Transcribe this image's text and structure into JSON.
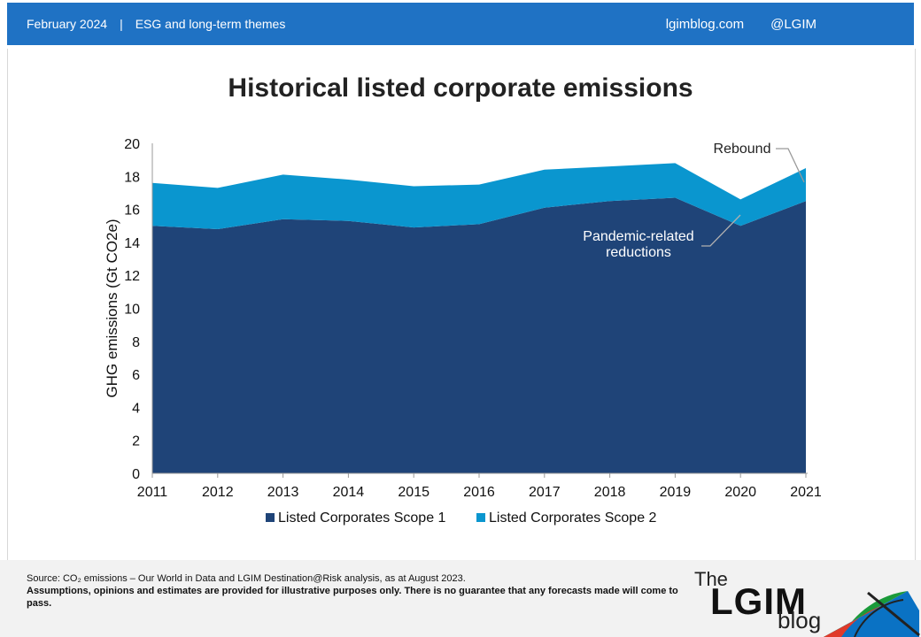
{
  "header": {
    "date": "February 2024",
    "separator": "|",
    "topic": "ESG and long-term themes",
    "site": "lgimblog.com",
    "handle": "@LGIM"
  },
  "chart_data": {
    "type": "area",
    "stacked": true,
    "title": "Historical listed corporate emissions",
    "ylabel": "GHG emissions (Gt CO2e)",
    "xlabel": "",
    "ylim": [
      0,
      20
    ],
    "yticks": [
      0,
      2,
      4,
      6,
      8,
      10,
      12,
      14,
      16,
      18,
      20
    ],
    "x": [
      "2011",
      "2012",
      "2013",
      "2014",
      "2015",
      "2016",
      "2017",
      "2018",
      "2019",
      "2020",
      "2021"
    ],
    "series": [
      {
        "name": "Listed Corporates Scope 1",
        "color": "#1f4478",
        "values": [
          15.0,
          14.8,
          15.4,
          15.3,
          14.9,
          15.1,
          16.1,
          16.5,
          16.7,
          15.0,
          16.5
        ]
      },
      {
        "name": "Listed Corporates Scope 2",
        "color": "#0a96cf",
        "values": [
          2.6,
          2.5,
          2.7,
          2.5,
          2.5,
          2.4,
          2.3,
          2.1,
          2.1,
          1.6,
          2.0
        ]
      }
    ],
    "legend": "bottom",
    "grid": false,
    "annotations": [
      {
        "text": "Rebound",
        "x": "2021"
      },
      {
        "text_lines": [
          "Pandemic-related",
          "reductions"
        ],
        "x": "2020"
      }
    ]
  },
  "footer": {
    "source": "Source: CO₂ emissions – Our World in Data and LGIM Destination@Risk analysis, as at August 2023.",
    "disclaimer": "Assumptions, opinions and estimates are provided for illustrative purposes only. There is no guarantee that any forecasts made will come to pass."
  },
  "logo": {
    "the": "The",
    "main": "LGIM",
    "blog": "blog"
  }
}
